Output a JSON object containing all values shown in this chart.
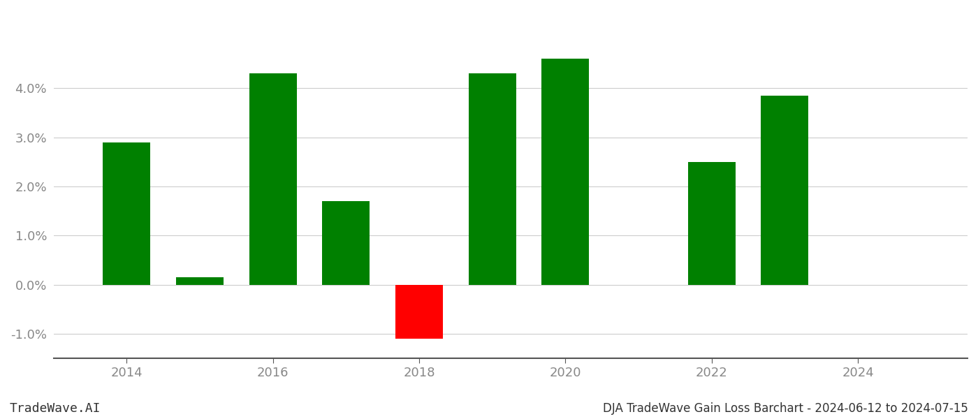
{
  "years": [
    2014,
    2015,
    2016,
    2017,
    2018,
    2019,
    2020,
    2022,
    2023
  ],
  "values": [
    0.029,
    0.0015,
    0.043,
    0.017,
    -0.011,
    0.043,
    0.046,
    0.025,
    0.0385
  ],
  "colors": [
    "#008000",
    "#008000",
    "#008000",
    "#008000",
    "#ff0000",
    "#008000",
    "#008000",
    "#008000",
    "#008000"
  ],
  "xlim": [
    2013.0,
    2025.5
  ],
  "ylim": [
    -0.015,
    0.055
  ],
  "yticks": [
    -0.01,
    0.0,
    0.01,
    0.02,
    0.03,
    0.04
  ],
  "xticks": [
    2014,
    2016,
    2018,
    2020,
    2022,
    2024
  ],
  "bar_width": 0.65,
  "title": "DJA TradeWave Gain Loss Barchart - 2024-06-12 to 2024-07-15",
  "watermark": "TradeWave.AI",
  "grid_color": "#cccccc",
  "tick_color": "#888888",
  "background_color": "#ffffff"
}
